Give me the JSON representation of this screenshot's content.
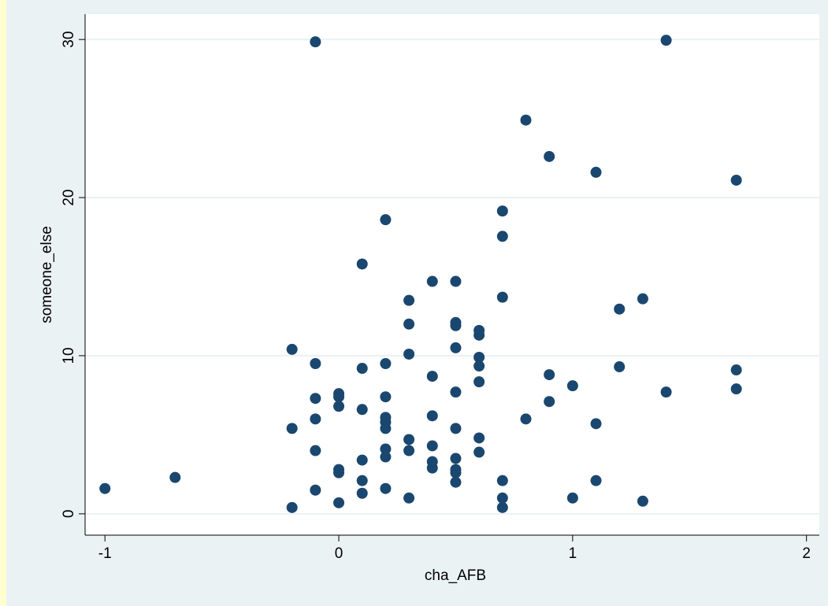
{
  "chart_data": {
    "type": "scatter",
    "x_label": "cha_AFB",
    "y_label": "someone_else",
    "color": "#1a476f",
    "grid": true,
    "xlim": [
      -1.085,
      2.055
    ],
    "ylim": [
      -1.35,
      31.6
    ],
    "xticks": [
      -1,
      0,
      1,
      2
    ],
    "yticks": [
      0,
      10,
      20,
      30
    ],
    "x": [
      -1,
      -0.7,
      -0.2,
      -0.2,
      -0.2,
      -0.1,
      -0.1,
      -0.1,
      -0.1,
      -0.1,
      -0.1,
      0,
      0,
      0,
      0,
      0,
      0,
      0.1,
      0.1,
      0.1,
      0.1,
      0.1,
      0.1,
      0.2,
      0.2,
      0.2,
      0.2,
      0.2,
      0.2,
      0.2,
      0.2,
      0.2,
      0.3,
      0.3,
      0.3,
      0.3,
      0.3,
      0.3,
      0.4,
      0.4,
      0.4,
      0.4,
      0.4,
      0.4,
      0.5,
      0.5,
      0.5,
      0.5,
      0.5,
      0.5,
      0.5,
      0.5,
      0.5,
      0.5,
      0.6,
      0.6,
      0.6,
      0.6,
      0.6,
      0.6,
      0.6,
      0.7,
      0.7,
      0.7,
      0.7,
      0.7,
      0.7,
      0.8,
      0.8,
      0.9,
      0.9,
      0.9,
      1.0,
      1.0,
      1.1,
      1.1,
      1.1,
      1.2,
      1.2,
      1.3,
      1.3,
      1.4,
      1.4,
      1.7,
      1.7,
      1.7
    ],
    "values": [
      1.6,
      2.3,
      10.4,
      5.4,
      0.4,
      29.85,
      9.5,
      7.3,
      6.0,
      4.0,
      1.5,
      7.6,
      7.4,
      6.8,
      2.8,
      2.6,
      0.7,
      15.8,
      9.2,
      6.6,
      3.4,
      2.1,
      1.3,
      18.6,
      9.5,
      7.4,
      6.1,
      5.8,
      5.4,
      4.1,
      3.6,
      1.6,
      13.5,
      12.0,
      10.1,
      4.7,
      4.0,
      1.0,
      14.7,
      8.7,
      6.2,
      4.3,
      3.3,
      2.9,
      14.7,
      12.1,
      11.9,
      10.5,
      7.7,
      5.4,
      3.5,
      2.8,
      2.6,
      2.0,
      11.6,
      11.3,
      9.9,
      9.35,
      8.35,
      4.8,
      3.9,
      19.15,
      17.55,
      13.7,
      2.1,
      1.0,
      0.4,
      24.9,
      6.0,
      22.6,
      8.8,
      7.1,
      8.1,
      1.0,
      21.6,
      5.7,
      2.1,
      12.95,
      9.3,
      13.6,
      0.8,
      29.95,
      7.7,
      21.1,
      9.1,
      7.9
    ]
  }
}
